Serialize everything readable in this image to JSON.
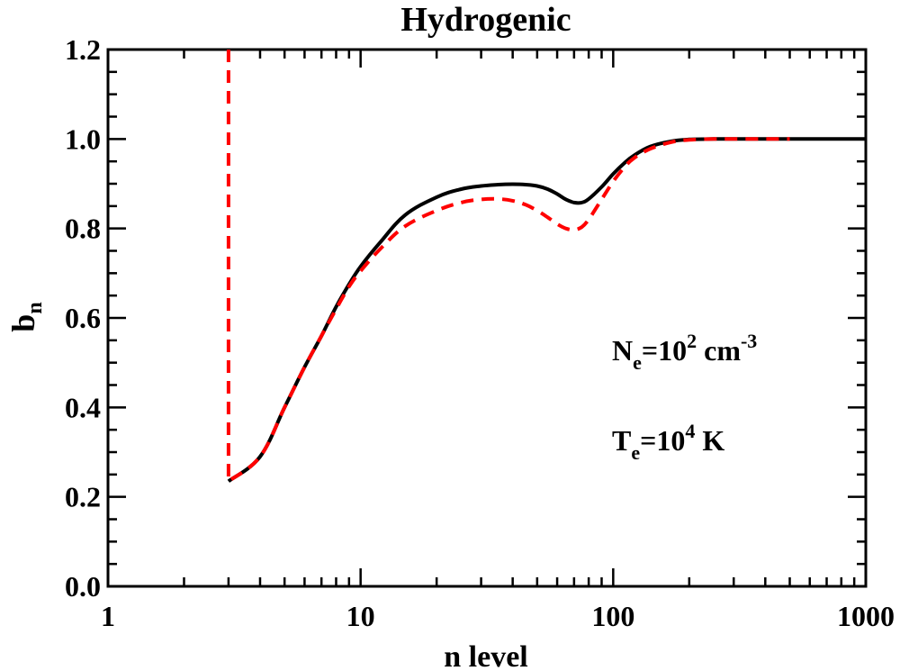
{
  "chart_data": {
    "type": "line",
    "title": "Hydrogenic",
    "xlabel": "n level",
    "ylabel": "b",
    "ylabel_sub": "n",
    "xscale": "log",
    "xlim": [
      1,
      1000
    ],
    "ylim": [
      0.0,
      1.2
    ],
    "x_ticks": [
      1,
      10,
      100,
      1000
    ],
    "x_tick_labels": [
      "1",
      "10",
      "100",
      "1000"
    ],
    "y_ticks": [
      0.0,
      0.2,
      0.4,
      0.6,
      0.8,
      1.0,
      1.2
    ],
    "y_tick_labels": [
      "0.0",
      "0.2",
      "0.4",
      "0.6",
      "0.8",
      "1.0",
      "1.2"
    ],
    "annotations": {
      "ne": {
        "base": "N",
        "sub": "e",
        "mid": "=10",
        "sup": "2",
        "unit": " cm",
        "unit_sup": "-3"
      },
      "te": {
        "base": "T",
        "sub": "e",
        "mid": "=10",
        "sup": "4",
        "unit": " K"
      }
    },
    "series": [
      {
        "name": "solid",
        "color": "#000000",
        "style": "solid",
        "x": [
          3,
          4,
          5,
          6,
          7,
          8,
          9,
          10,
          12,
          15,
          20,
          25,
          30,
          35,
          40,
          45,
          50,
          55,
          60,
          65,
          70,
          75,
          80,
          90,
          100,
          110,
          120,
          140,
          170,
          200,
          250,
          300,
          400,
          500,
          700,
          1000
        ],
        "y": [
          0.235,
          0.29,
          0.4,
          0.49,
          0.56,
          0.625,
          0.675,
          0.715,
          0.77,
          0.83,
          0.87,
          0.888,
          0.895,
          0.898,
          0.899,
          0.898,
          0.895,
          0.888,
          0.877,
          0.865,
          0.858,
          0.858,
          0.866,
          0.893,
          0.922,
          0.945,
          0.962,
          0.983,
          0.995,
          0.999,
          1.0,
          1.0,
          1.0,
          1.0,
          1.0,
          1.0
        ]
      },
      {
        "name": "dashed",
        "color": "#ff0000",
        "style": "dashed",
        "x": [
          3,
          3,
          4,
          5,
          6,
          7,
          8,
          9,
          10,
          12,
          15,
          20,
          25,
          30,
          35,
          40,
          45,
          50,
          55,
          60,
          65,
          70,
          75,
          80,
          90,
          100,
          110,
          120,
          140,
          170,
          200,
          250,
          300,
          400,
          500
        ],
        "y": [
          1.2,
          0.235,
          0.29,
          0.4,
          0.49,
          0.56,
          0.62,
          0.67,
          0.705,
          0.755,
          0.805,
          0.84,
          0.858,
          0.865,
          0.866,
          0.862,
          0.853,
          0.84,
          0.825,
          0.81,
          0.8,
          0.797,
          0.803,
          0.82,
          0.865,
          0.905,
          0.935,
          0.956,
          0.978,
          0.993,
          0.998,
          1.0,
          1.0,
          1.0,
          1.0
        ]
      }
    ]
  }
}
